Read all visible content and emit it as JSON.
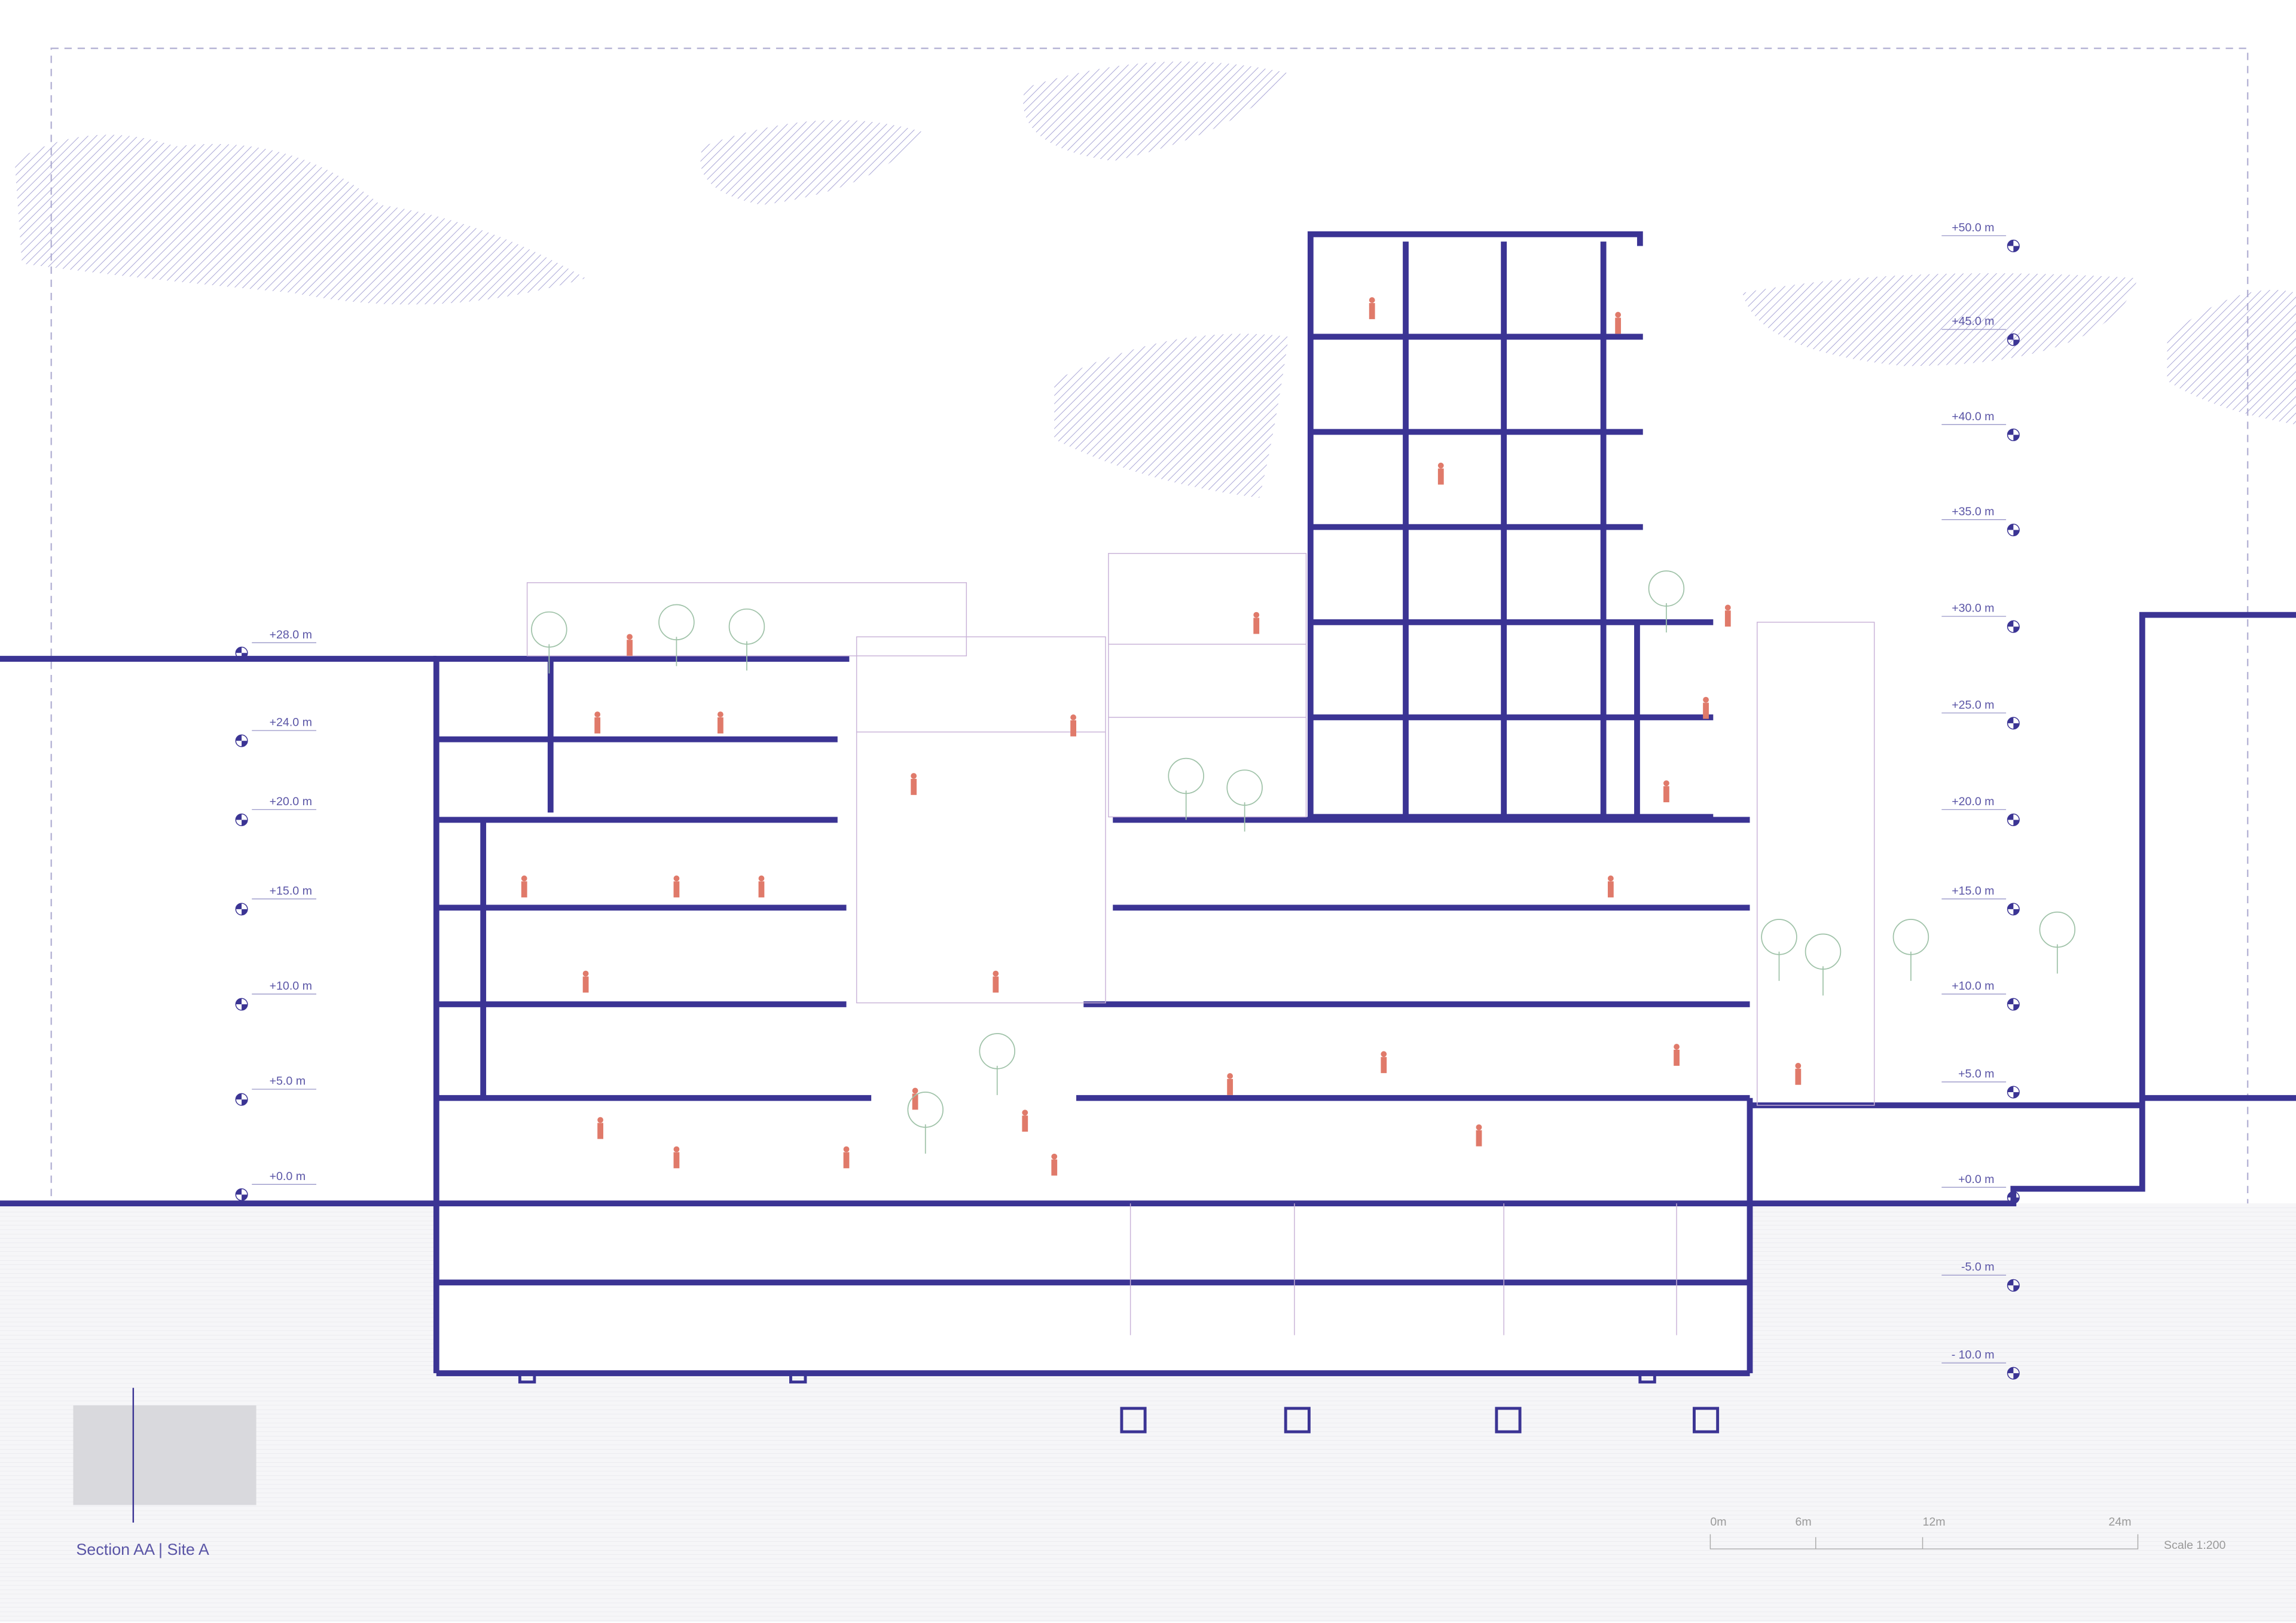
{
  "title": "Section AA | Site A",
  "levels_left": [
    "+28.0 m",
    "+24.0 m",
    "+20.0 m",
    "+15.0 m",
    "+10.0 m",
    "+5.0 m",
    "+0.0 m"
  ],
  "levels_right": [
    "+50.0 m",
    "+45.0 m",
    "+40.0 m",
    "+35.0 m",
    "+30.0 m",
    "+25.0 m",
    "+20.0 m",
    "+15.0 m",
    "+10.0 m",
    "+5.0 m",
    "+0.0 m",
    "-5.0 m",
    "- 10.0 m"
  ],
  "scale_bar": {
    "labels": [
      "0m",
      "6m",
      "12m",
      "24m"
    ],
    "scale": "Scale 1:200"
  }
}
